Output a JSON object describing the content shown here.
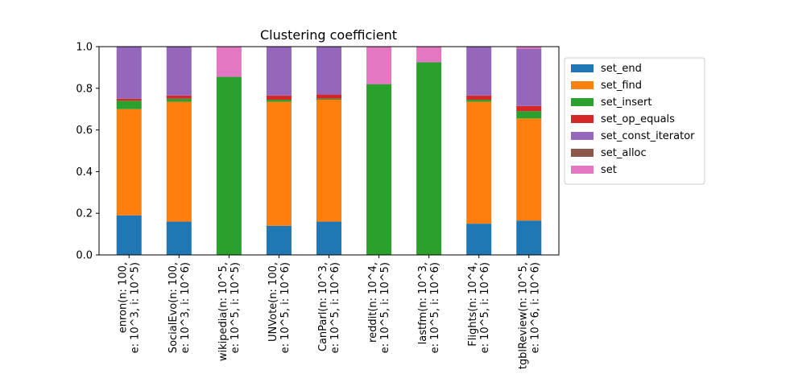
{
  "chart_data": {
    "type": "bar",
    "stacked": true,
    "title": "Clustering coefficient",
    "xlabel": "",
    "ylabel": "",
    "ylim": [
      0,
      1
    ],
    "yticks": [
      "0.0",
      "0.2",
      "0.4",
      "0.6",
      "0.8",
      "1.0"
    ],
    "grid": false,
    "legend_position": "right",
    "categories": [
      [
        "enron(n: 100,",
        "e: 10^3, i: 10^5)"
      ],
      [
        "SocialEvo(n: 100,",
        "e: 10^3, i: 10^6)"
      ],
      [
        "wikipedia(n: 10^5,",
        "e: 10^5, i: 10^5)"
      ],
      [
        "UNVote(n: 100,",
        "e: 10^5, i: 10^6)"
      ],
      [
        "CanParl(n: 10^3,",
        "e: 10^5, i: 10^6)"
      ],
      [
        "reddit(n: 10^4,",
        "e: 10^5, i: 10^5)"
      ],
      [
        "lastfm(n: 10^3,",
        "e: 10^5, i: 10^6)"
      ],
      [
        "Flights(n: 10^4,",
        "e: 10^5, i: 10^6)"
      ],
      [
        "tgblReview(n: 10^5,",
        "e: 10^6, i: 10^6)"
      ]
    ],
    "series": [
      {
        "name": "set_end",
        "color": "#1f77b4",
        "values": [
          0.19,
          0.16,
          0.0,
          0.14,
          0.16,
          0.0,
          0.0,
          0.15,
          0.165
        ]
      },
      {
        "name": "set_find",
        "color": "#ff7f0e",
        "values": [
          0.51,
          0.575,
          0.0,
          0.595,
          0.585,
          0.0,
          0.0,
          0.585,
          0.49
        ]
      },
      {
        "name": "set_insert",
        "color": "#2ca02c",
        "values": [
          0.04,
          0.015,
          0.855,
          0.01,
          0.005,
          0.82,
          0.925,
          0.01,
          0.035
        ]
      },
      {
        "name": "set_op_equals",
        "color": "#d62728",
        "values": [
          0.01,
          0.015,
          0.0,
          0.02,
          0.02,
          0.0,
          0.0,
          0.02,
          0.025
        ]
      },
      {
        "name": "set_const_iterator",
        "color": "#9467bd",
        "values": [
          0.25,
          0.235,
          0.0,
          0.235,
          0.23,
          0.0,
          0.0,
          0.235,
          0.275
        ]
      },
      {
        "name": "set_alloc",
        "color": "#8c564b",
        "values": [
          0.0,
          0.0,
          0.0,
          0.0,
          0.0,
          0.0,
          0.0,
          0.0,
          0.0
        ]
      },
      {
        "name": "set",
        "color": "#e377c2",
        "values": [
          0.0,
          0.0,
          0.145,
          0.0,
          0.0,
          0.18,
          0.075,
          0.0,
          0.01
        ]
      }
    ]
  }
}
